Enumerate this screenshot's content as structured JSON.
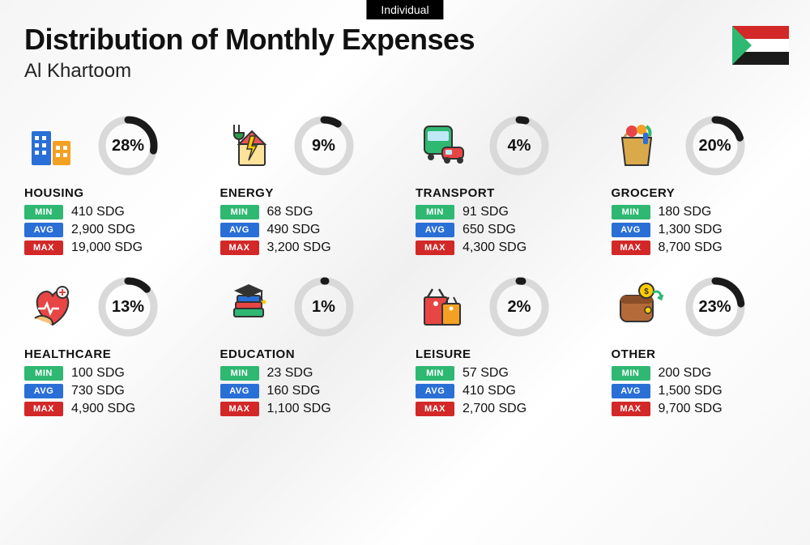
{
  "tag_label": "Individual",
  "title": "Distribution of Monthly Expenses",
  "subtitle": "Al Khartoom",
  "currency": "SDG",
  "colors": {
    "min": "#2eb872",
    "avg": "#2a6fd6",
    "max": "#d22828",
    "donut_track": "#d9d9d9",
    "donut_fill": "#1a1a1a",
    "background": "#f5f5f5",
    "text": "#111111"
  },
  "flag": {
    "stripes": [
      "#d22828",
      "#ffffff",
      "#1a1a1a"
    ],
    "triangle": "#2eb872"
  },
  "stat_labels": {
    "min": "MIN",
    "avg": "AVG",
    "max": "MAX"
  },
  "donut": {
    "radius": 32,
    "stroke_width": 9
  },
  "categories": [
    {
      "name": "HOUSING",
      "percent": 28,
      "min": "410",
      "avg": "2,900",
      "max": "19,000",
      "icon": "housing"
    },
    {
      "name": "ENERGY",
      "percent": 9,
      "min": "68",
      "avg": "490",
      "max": "3,200",
      "icon": "energy"
    },
    {
      "name": "TRANSPORT",
      "percent": 4,
      "min": "91",
      "avg": "650",
      "max": "4,300",
      "icon": "transport"
    },
    {
      "name": "GROCERY",
      "percent": 20,
      "min": "180",
      "avg": "1,300",
      "max": "8,700",
      "icon": "grocery"
    },
    {
      "name": "HEALTHCARE",
      "percent": 13,
      "min": "100",
      "avg": "730",
      "max": "4,900",
      "icon": "healthcare"
    },
    {
      "name": "EDUCATION",
      "percent": 1,
      "min": "23",
      "avg": "160",
      "max": "1,100",
      "icon": "education"
    },
    {
      "name": "LEISURE",
      "percent": 2,
      "min": "57",
      "avg": "410",
      "max": "2,700",
      "icon": "leisure"
    },
    {
      "name": "OTHER",
      "percent": 23,
      "min": "200",
      "avg": "1,500",
      "max": "9,700",
      "icon": "other"
    }
  ]
}
